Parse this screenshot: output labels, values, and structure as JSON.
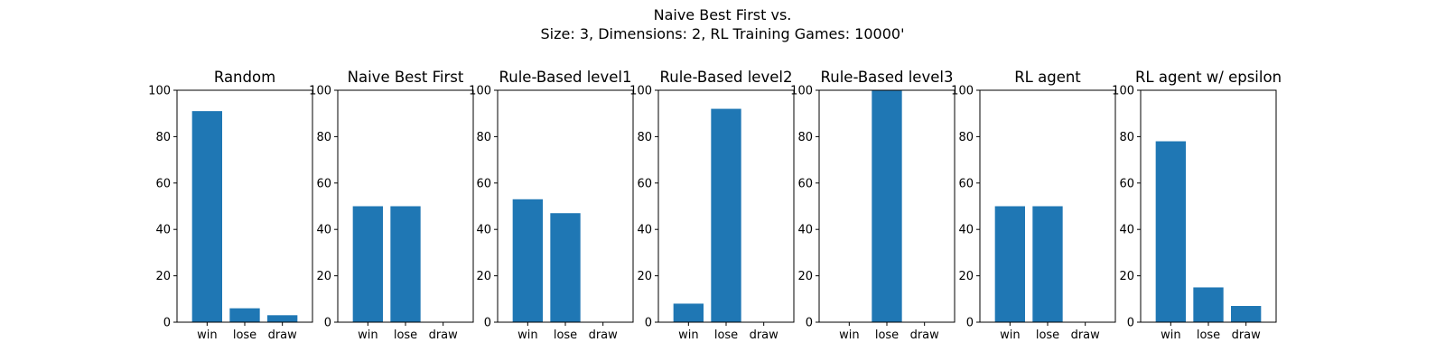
{
  "figure": {
    "title_line1": "Naive Best First vs.",
    "title_line2": "Size: 3, Dimensions: 2, RL Training Games: 10000'"
  },
  "chart_data": [
    {
      "type": "bar",
      "title": "Random",
      "categories": [
        "win",
        "lose",
        "draw"
      ],
      "values": [
        91,
        6,
        3
      ],
      "ylim": [
        0,
        100
      ],
      "yticks": [
        0,
        20,
        40,
        60,
        80,
        100
      ],
      "color": "#1f77b4"
    },
    {
      "type": "bar",
      "title": "Naive Best First",
      "categories": [
        "win",
        "lose",
        "draw"
      ],
      "values": [
        50,
        50,
        0
      ],
      "ylim": [
        0,
        100
      ],
      "yticks": [
        0,
        20,
        40,
        60,
        80,
        100
      ],
      "color": "#1f77b4"
    },
    {
      "type": "bar",
      "title": "Rule-Based level1",
      "categories": [
        "win",
        "lose",
        "draw"
      ],
      "values": [
        53,
        47,
        0
      ],
      "ylim": [
        0,
        100
      ],
      "yticks": [
        0,
        20,
        40,
        60,
        80,
        100
      ],
      "color": "#1f77b4"
    },
    {
      "type": "bar",
      "title": "Rule-Based level2",
      "categories": [
        "win",
        "lose",
        "draw"
      ],
      "values": [
        8,
        92,
        0
      ],
      "ylim": [
        0,
        100
      ],
      "yticks": [
        0,
        20,
        40,
        60,
        80,
        100
      ],
      "color": "#1f77b4"
    },
    {
      "type": "bar",
      "title": "Rule-Based level3",
      "categories": [
        "win",
        "lose",
        "draw"
      ],
      "values": [
        0,
        100,
        0
      ],
      "ylim": [
        0,
        100
      ],
      "yticks": [
        0,
        20,
        40,
        60,
        80,
        100
      ],
      "color": "#1f77b4"
    },
    {
      "type": "bar",
      "title": "RL agent",
      "categories": [
        "win",
        "lose",
        "draw"
      ],
      "values": [
        50,
        50,
        0
      ],
      "ylim": [
        0,
        100
      ],
      "yticks": [
        0,
        20,
        40,
        60,
        80,
        100
      ],
      "color": "#1f77b4"
    },
    {
      "type": "bar",
      "title": "RL agent w/ epsilon",
      "categories": [
        "win",
        "lose",
        "draw"
      ],
      "values": [
        78,
        15,
        7
      ],
      "ylim": [
        0,
        100
      ],
      "yticks": [
        0,
        20,
        40,
        60,
        80,
        100
      ],
      "color": "#1f77b4"
    }
  ]
}
